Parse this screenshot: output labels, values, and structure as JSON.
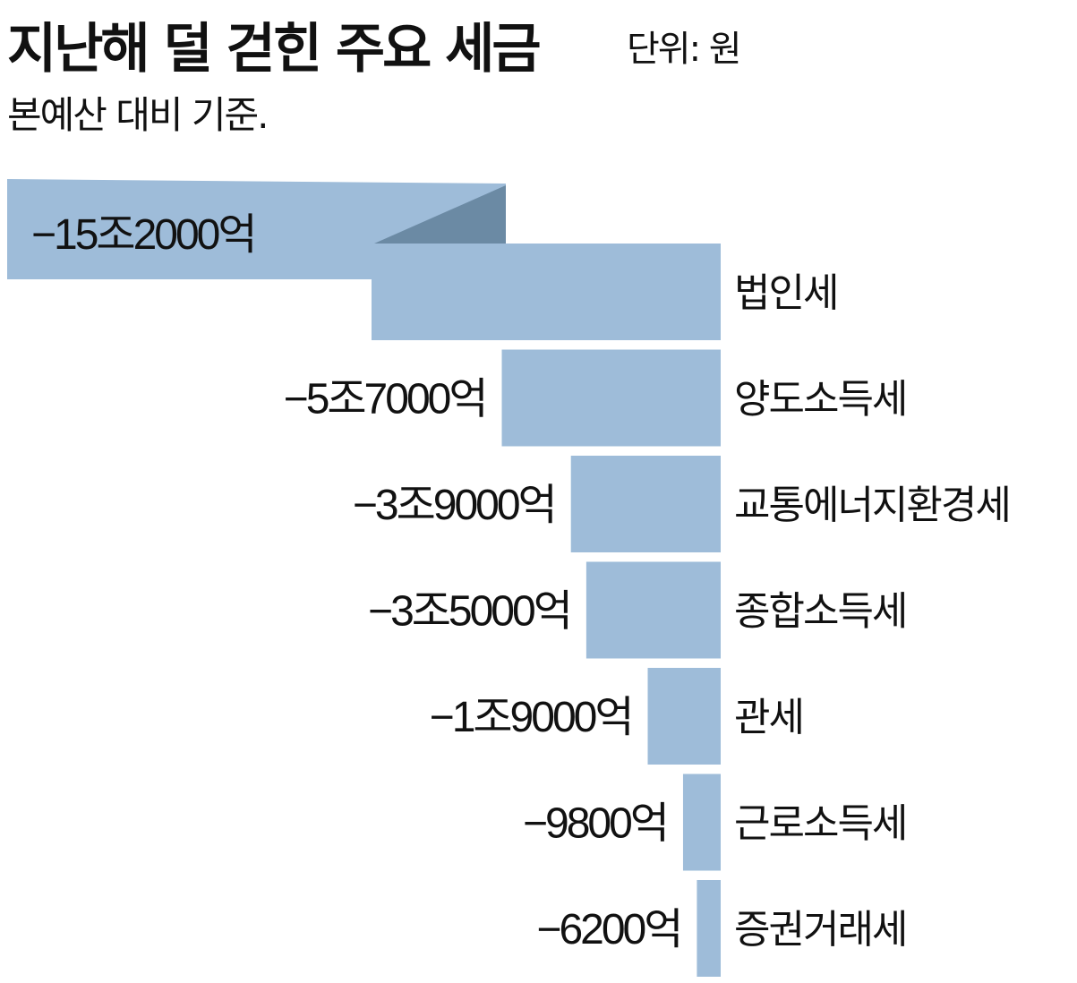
{
  "title": "지난해 덜 걷힌 주요 세금",
  "unit": "단위: 원",
  "subtitle": "본예산 대비 기준.",
  "colors": {
    "bar": "#9ebcd9",
    "fold": "#6b8aa4"
  },
  "chart_data": {
    "type": "bar",
    "orientation": "horizontal",
    "categories": [
      "법인세",
      "양도소득세",
      "교통에너지환경세",
      "종합소득세",
      "관세",
      "근로소득세",
      "증권거래세"
    ],
    "values": [
      -152000,
      -57000,
      -39000,
      -35000,
      -19000,
      -9800,
      -6200
    ],
    "value_labels": [
      "−15조2000억",
      "−5조7000억",
      "−3조9000억",
      "−3조5000억",
      "−1조9000억",
      "−9800억",
      "−6200억"
    ],
    "title": "지난해 덜 걷힌 주요 세금",
    "subtitle": "본예산 대비 기준.",
    "xlabel": "",
    "ylabel": "",
    "grid": false
  }
}
